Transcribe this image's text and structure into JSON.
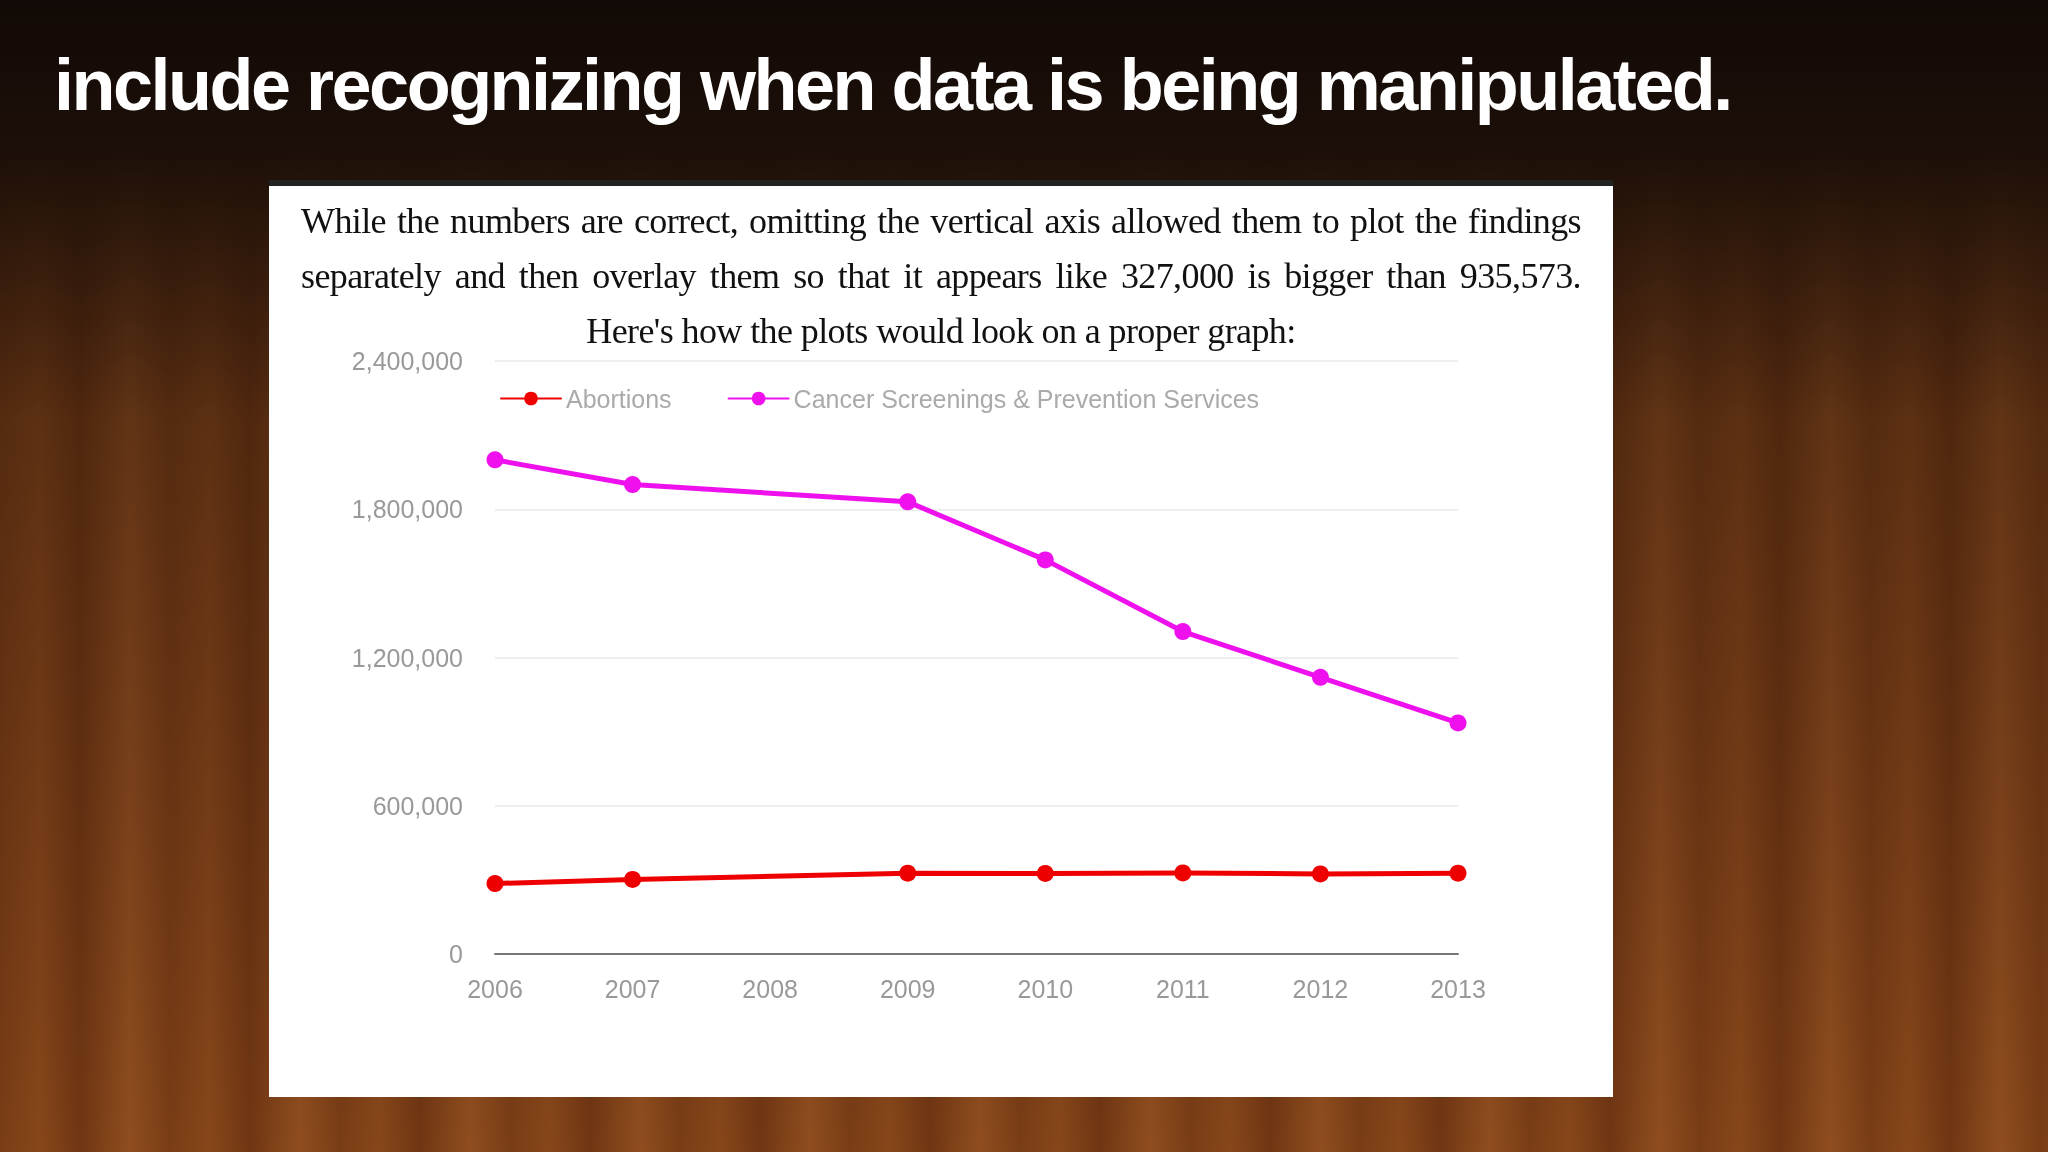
{
  "chart_data": {
    "type": "line",
    "title": "include recognizing when data is being manipulated.",
    "subtitle": "While the numbers are correct, omitting the vertical axis allowed them to plot the findings separately and then overlay them so that it appears like 327,000 is bigger than 935,573. Here's how the plots would look on a proper graph:",
    "x": [
      2006,
      2007,
      2009,
      2010,
      2011,
      2012,
      2013
    ],
    "xlim": [
      2006,
      2013
    ],
    "xticks": [
      2006,
      2007,
      2008,
      2009,
      2010,
      2011,
      2012,
      2013
    ],
    "ylim": [
      0,
      2400000
    ],
    "yticks": [
      0,
      {
        "value": 600000,
        "label": "600,000"
      },
      {
        "value": 1200000,
        "label": "1,200,000"
      },
      {
        "value": 1800000,
        "label": "1,800,000"
      },
      {
        "value": 2400000,
        "label": "2,400,000"
      }
    ],
    "series": [
      {
        "name": "Abortions",
        "color": "#ee0000",
        "values": [
          285000,
          302000,
          327000,
          326000,
          328000,
          324000,
          327000
        ]
      },
      {
        "name": "Cancer Screenings & Prevention Services",
        "color": "#ee11ee",
        "values": [
          2000000,
          1900000,
          1830000,
          1595000,
          1305000,
          1120000,
          935000
        ]
      }
    ],
    "grid": "y",
    "legend": "top left",
    "marker": "circle",
    "line_style": "solid"
  }
}
